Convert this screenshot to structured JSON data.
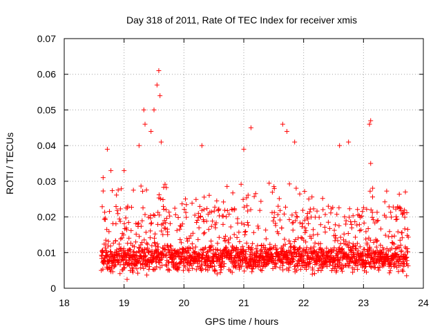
{
  "chart_data": {
    "type": "scatter",
    "title": "Day 318 of 2011, Rate Of TEC Index for receiver xmis",
    "xlabel": "GPS time / hours",
    "ylabel": "ROTI / TECUs",
    "xlim": [
      18,
      24
    ],
    "ylim": [
      0,
      0.07
    ],
    "xticks": [
      18,
      19,
      20,
      21,
      22,
      23,
      24
    ],
    "xtick_labels": [
      "18",
      "19",
      "20",
      "21",
      "22",
      "23",
      "24"
    ],
    "yticks": [
      0,
      0.01,
      0.02,
      0.03,
      0.04,
      0.05,
      0.06,
      0.07
    ],
    "ytick_labels": [
      "0",
      "0.01",
      "0.02",
      "0.03",
      "0.04",
      "0.05",
      "0.06",
      "0.07"
    ],
    "grid": true,
    "marker": "plus",
    "color": "#ff0000",
    "series": [
      {
        "name": "ROTI",
        "x_range": [
          18.62,
          23.75
        ],
        "typical_range": [
          0.004,
          0.02
        ],
        "notable_points": [
          {
            "x": 18.65,
            "y": 0.031
          },
          {
            "x": 18.72,
            "y": 0.039
          },
          {
            "x": 18.78,
            "y": 0.033
          },
          {
            "x": 19.0,
            "y": 0.033
          },
          {
            "x": 19.25,
            "y": 0.04
          },
          {
            "x": 19.33,
            "y": 0.05
          },
          {
            "x": 19.35,
            "y": 0.046
          },
          {
            "x": 19.45,
            "y": 0.044
          },
          {
            "x": 19.5,
            "y": 0.05
          },
          {
            "x": 19.55,
            "y": 0.057
          },
          {
            "x": 19.58,
            "y": 0.061
          },
          {
            "x": 19.6,
            "y": 0.054
          },
          {
            "x": 19.62,
            "y": 0.041
          },
          {
            "x": 20.3,
            "y": 0.04
          },
          {
            "x": 21.0,
            "y": 0.039
          },
          {
            "x": 21.12,
            "y": 0.045
          },
          {
            "x": 21.65,
            "y": 0.046
          },
          {
            "x": 21.72,
            "y": 0.044
          },
          {
            "x": 21.85,
            "y": 0.041
          },
          {
            "x": 22.6,
            "y": 0.04
          },
          {
            "x": 22.75,
            "y": 0.041
          },
          {
            "x": 23.1,
            "y": 0.046
          },
          {
            "x": 23.12,
            "y": 0.047
          },
          {
            "x": 23.12,
            "y": 0.035
          },
          {
            "x": 23.7,
            "y": 0.027
          },
          {
            "x": 19.05,
            "y": 0.0025
          },
          {
            "x": 23.72,
            "y": 0.0035
          }
        ]
      }
    ]
  }
}
